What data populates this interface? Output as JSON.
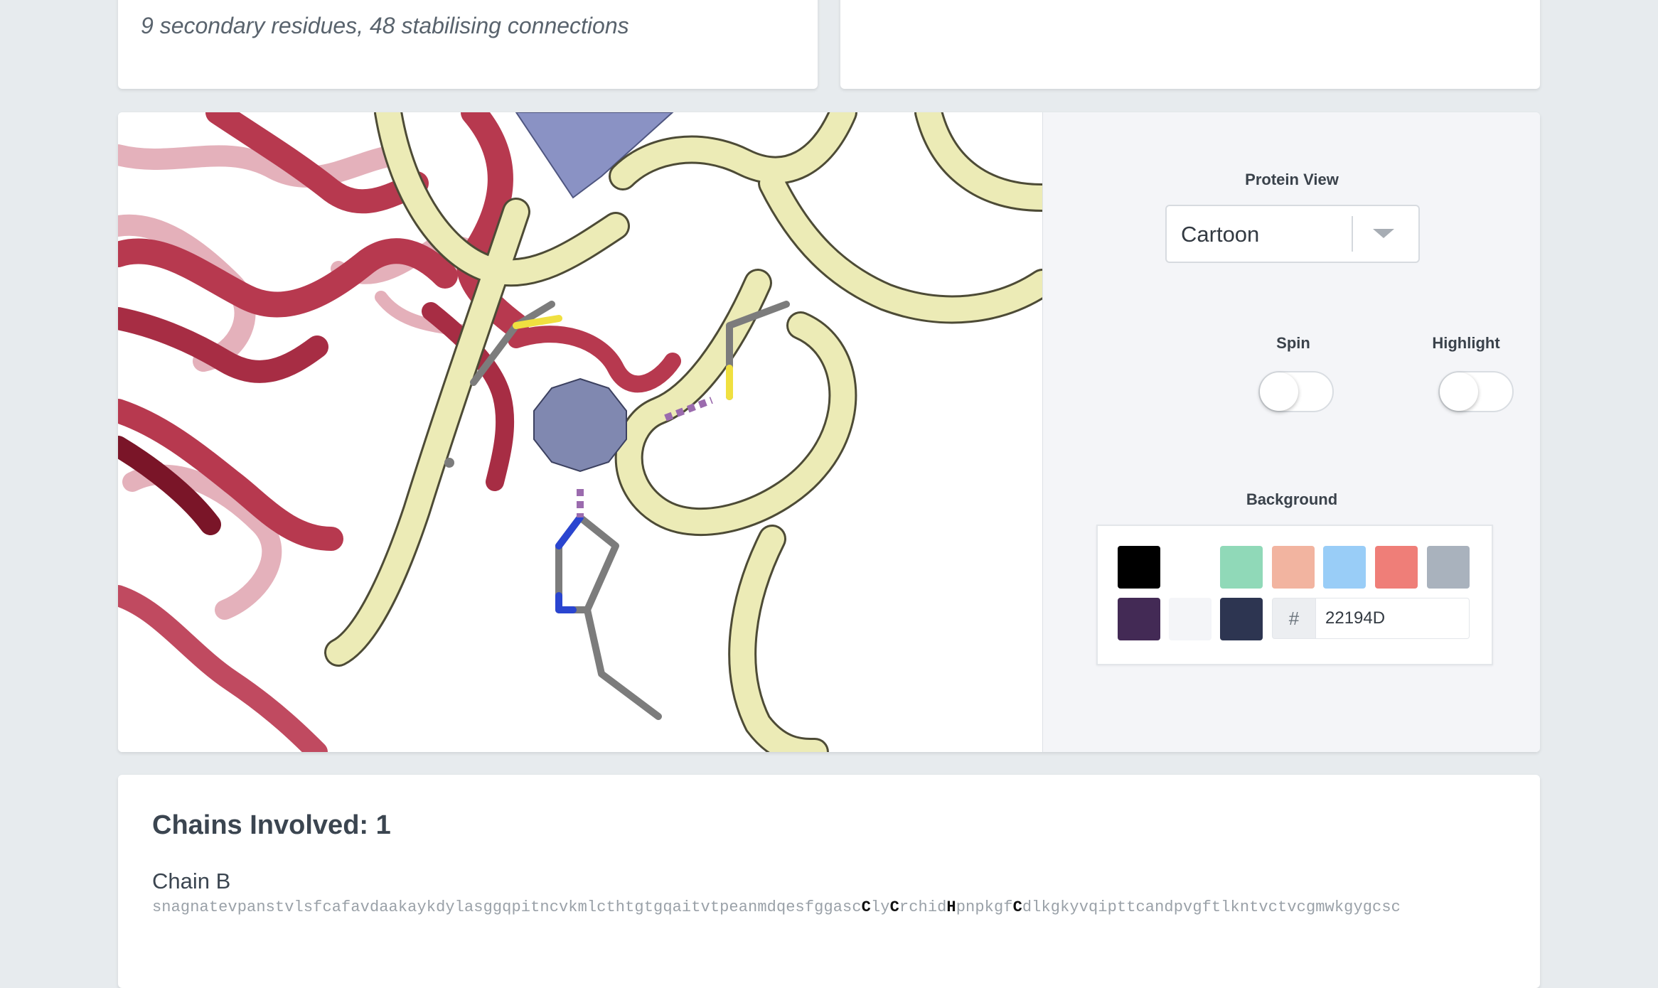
{
  "summary": {
    "text": "9 secondary residues, 48 stabilising connections"
  },
  "controls": {
    "protein_view_label": "Protein View",
    "protein_view_value": "Cartoon",
    "spin_label": "Spin",
    "spin_on": false,
    "highlight_label": "Highlight",
    "highlight_on": false,
    "background_label": "Background",
    "hash_symbol": "#",
    "hex_value": "22194D",
    "swatches_row1": [
      "#000000",
      "#ffffff",
      "#90d9b8",
      "#f2b4a0",
      "#99cdf7",
      "#ef7e78",
      "#a9b2bd"
    ],
    "swatches_row2": [
      "#432a55",
      "#f4f5f8",
      "#2d3551"
    ]
  },
  "chains": {
    "title": "Chains Involved: 1",
    "chain_name": "Chain B",
    "sequence_segments": [
      {
        "text": "snagnatevpanstvlsfcafavdaakaykdylasggqpitncvkmlcthtgtgqaitvtpeanmdqesfggasc",
        "bold": false
      },
      {
        "text": "C",
        "bold": true
      },
      {
        "text": "ly",
        "bold": false
      },
      {
        "text": "C",
        "bold": true
      },
      {
        "text": "rchid",
        "bold": false
      },
      {
        "text": "H",
        "bold": true
      },
      {
        "text": "pnpkgf",
        "bold": false
      },
      {
        "text": "C",
        "bold": true
      },
      {
        "text": "dlkgkyvqipttcandpvgftlkntvctvcgmwkgygcsc",
        "bold": false
      }
    ]
  },
  "colors": {
    "ribbon_red": "#b7394f",
    "ribbon_red_dark": "#7a1528",
    "ribbon_yellow": "#ecebb6",
    "ribbon_blue": "#8a92c4",
    "zinc_ion": "#8088b0",
    "sulfur": "#f0e040",
    "nitrogen": "#2a45d0",
    "carbon": "#7c7c7c",
    "bond_dash": "#9b6bae"
  }
}
